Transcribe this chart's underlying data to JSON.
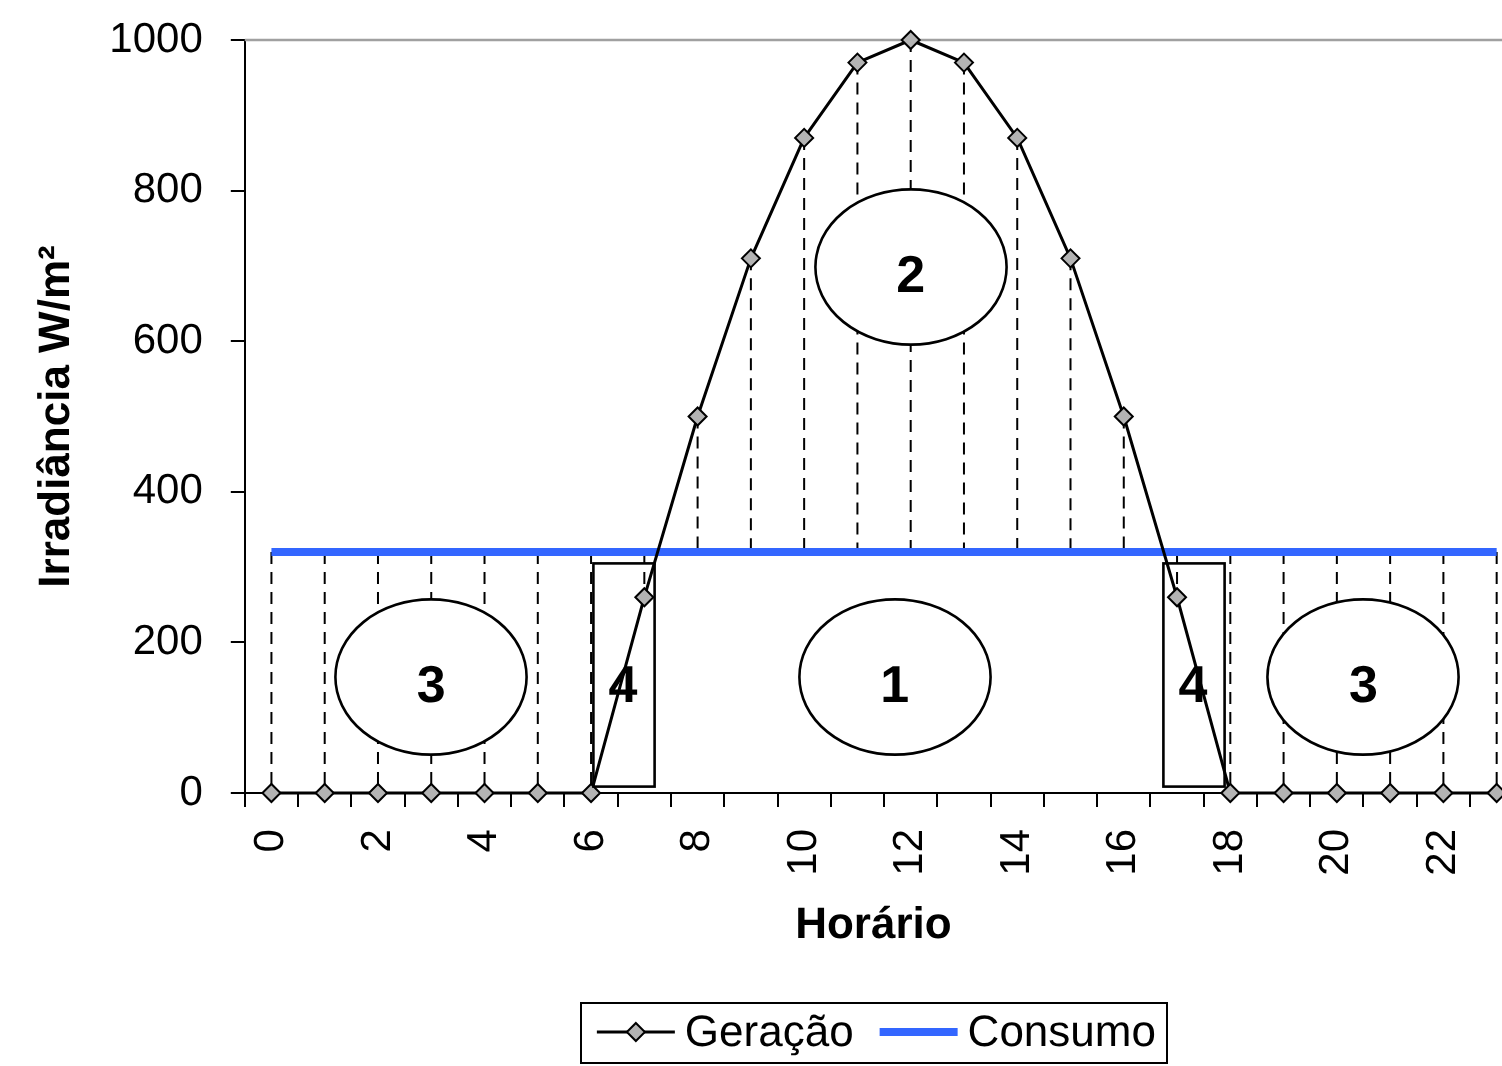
{
  "chart_data": {
    "type": "line",
    "xlabel": "Horário",
    "ylabel": "Irradiância W/m²",
    "x": [
      0,
      1,
      2,
      3,
      4,
      5,
      6,
      7,
      8,
      9,
      10,
      11,
      12,
      13,
      14,
      15,
      16,
      17,
      18,
      19,
      20,
      21,
      22,
      23
    ],
    "xlim": [
      -0.5,
      23.1
    ],
    "xticks": [
      {
        "value": -0.5,
        "label": null
      },
      0,
      {
        "value": 0.5,
        "label": null
      },
      {
        "value": 1.5,
        "label": null
      },
      2,
      {
        "value": 2.5,
        "label": null
      },
      {
        "value": 3.5,
        "label": null
      },
      4,
      {
        "value": 4.5,
        "label": null
      },
      {
        "value": 5.5,
        "label": null
      },
      6,
      {
        "value": 6.5,
        "label": null
      },
      {
        "value": 7.5,
        "label": null
      },
      8,
      {
        "value": 8.5,
        "label": null
      },
      {
        "value": 9.5,
        "label": null
      },
      10,
      {
        "value": 10.5,
        "label": null
      },
      {
        "value": 11.5,
        "label": null
      },
      12,
      {
        "value": 12.5,
        "label": null
      },
      {
        "value": 13.5,
        "label": null
      },
      14,
      {
        "value": 14.5,
        "label": null
      },
      {
        "value": 15.5,
        "label": null
      },
      16,
      {
        "value": 16.5,
        "label": null
      },
      {
        "value": 17.5,
        "label": null
      },
      18,
      {
        "value": 18.5,
        "label": null
      },
      {
        "value": 19.5,
        "label": null
      },
      20,
      {
        "value": 20.5,
        "label": null
      },
      {
        "value": 21.5,
        "label": null
      },
      22,
      {
        "value": 22.5,
        "label": null
      }
    ],
    "ylim": [
      0,
      1000
    ],
    "yticks": [
      0,
      200,
      400,
      600,
      800,
      1000
    ],
    "marker": "diamond",
    "legend": "bottom",
    "series": [
      {
        "name": "Geração",
        "color": "#000000",
        "values": [
          0,
          0,
          0,
          0,
          0,
          0,
          0,
          260,
          500,
          710,
          870,
          970,
          1000,
          970,
          870,
          710,
          500,
          260,
          0,
          0,
          0,
          0,
          0,
          0
        ]
      },
      {
        "name": "Consumo",
        "color": "#3366ff",
        "marker": "none",
        "values": [
          320,
          320,
          320,
          320,
          320,
          320,
          320,
          320,
          320,
          320,
          320,
          320,
          320,
          320,
          320,
          320,
          320,
          320,
          320,
          320,
          320,
          320,
          320,
          320
        ]
      },
      {
        "color": "#000000",
        "marker": "none",
        "line_style": "dashed",
        "x": [
          0,
          0
        ],
        "values": [
          320,
          0
        ]
      },
      {
        "color": "#000000",
        "marker": "none",
        "line_style": "dashed",
        "x": [
          1,
          1
        ],
        "values": [
          320,
          0
        ]
      },
      {
        "color": "#000000",
        "marker": "none",
        "line_style": "dashed",
        "x": [
          2,
          2
        ],
        "values": [
          320,
          0
        ]
      },
      {
        "color": "#000000",
        "marker": "none",
        "line_style": "dashed",
        "x": [
          3,
          3
        ],
        "values": [
          320,
          0
        ]
      },
      {
        "color": "#000000",
        "marker": "none",
        "line_style": "dashed",
        "x": [
          4,
          4
        ],
        "values": [
          320,
          0
        ]
      },
      {
        "color": "#000000",
        "marker": "none",
        "line_style": "dashed",
        "x": [
          5,
          5
        ],
        "values": [
          320,
          0
        ]
      },
      {
        "color": "#000000",
        "marker": "none",
        "line_style": "dashed",
        "x": [
          6,
          6
        ],
        "values": [
          320,
          0
        ]
      },
      {
        "color": "#000000",
        "marker": "none",
        "line_style": "dashed",
        "x": [
          7,
          7
        ],
        "values": [
          320,
          260
        ]
      },
      {
        "color": "#000000",
        "marker": "none",
        "line_style": "dashed",
        "x": [
          8,
          8
        ],
        "values": [
          500,
          320
        ]
      },
      {
        "color": "#000000",
        "marker": "none",
        "line_style": "dashed",
        "x": [
          9,
          9
        ],
        "values": [
          710,
          320
        ]
      },
      {
        "color": "#000000",
        "marker": "none",
        "line_style": "dashed",
        "x": [
          10,
          10
        ],
        "values": [
          870,
          320
        ]
      },
      {
        "color": "#000000",
        "marker": "none",
        "line_style": "dashed",
        "x": [
          11,
          11
        ],
        "values": [
          970,
          320
        ]
      },
      {
        "color": "#000000",
        "marker": "none",
        "line_style": "dashed",
        "x": [
          12,
          12
        ],
        "values": [
          1000,
          320
        ]
      },
      {
        "color": "#000000",
        "marker": "none",
        "line_style": "dashed",
        "x": [
          13,
          13
        ],
        "values": [
          970,
          320
        ]
      },
      {
        "color": "#000000",
        "marker": "none",
        "line_style": "dashed",
        "x": [
          14,
          14
        ],
        "values": [
          870,
          320
        ]
      },
      {
        "color": "#000000",
        "marker": "none",
        "line_style": "dashed",
        "x": [
          15,
          15
        ],
        "values": [
          710,
          320
        ]
      },
      {
        "color": "#000000",
        "marker": "none",
        "line_style": "dashed",
        "x": [
          16,
          16
        ],
        "values": [
          500,
          320
        ]
      },
      {
        "color": "#000000",
        "marker": "none",
        "line_style": "dashed",
        "x": [
          17,
          17
        ],
        "values": [
          320,
          260
        ]
      },
      {
        "color": "#000000",
        "marker": "none",
        "line_style": "dashed",
        "x": [
          18,
          18
        ],
        "values": [
          320,
          0
        ]
      },
      {
        "color": "#000000",
        "marker": "none",
        "line_style": "dashed",
        "x": [
          19,
          19
        ],
        "values": [
          320,
          0
        ]
      },
      {
        "color": "#000000",
        "marker": "none",
        "line_style": "dashed",
        "x": [
          20,
          20
        ],
        "values": [
          320,
          0
        ]
      },
      {
        "color": "#000000",
        "marker": "none",
        "line_style": "dashed",
        "x": [
          21,
          21
        ],
        "values": [
          320,
          0
        ]
      },
      {
        "color": "#000000",
        "marker": "none",
        "line_style": "dashed",
        "x": [
          22,
          22
        ],
        "values": [
          320,
          0
        ]
      },
      {
        "color": "#000000",
        "marker": "none",
        "line_style": "dashed",
        "x": [
          23,
          23
        ],
        "values": [
          320,
          0
        ]
      }
    ],
    "annotations": [
      "2",
      "3",
      "4",
      "1",
      "4",
      "3"
    ]
  }
}
